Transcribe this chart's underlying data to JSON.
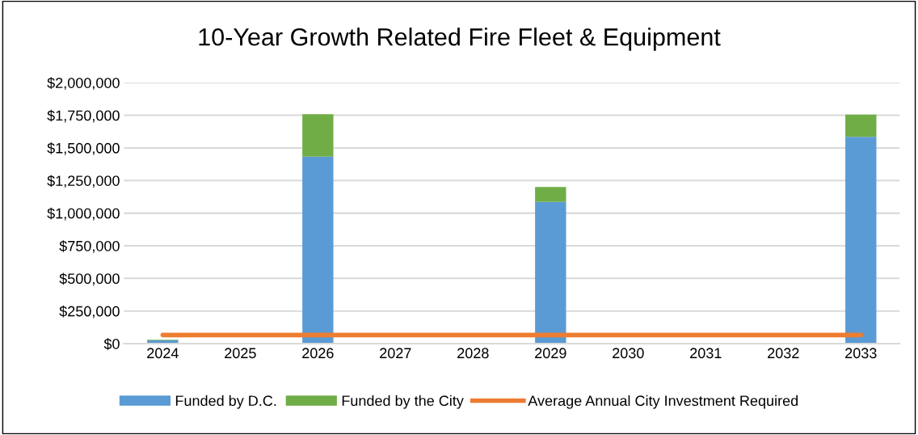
{
  "chart_data": {
    "type": "bar",
    "stacked": true,
    "title": "10-Year Growth Related Fire Fleet & Equipment",
    "categories": [
      "2024",
      "2025",
      "2026",
      "2027",
      "2028",
      "2029",
      "2030",
      "2031",
      "2032",
      "2033"
    ],
    "series": [
      {
        "name": "Funded by D.C.",
        "color": "#5b9bd5",
        "values": [
          25000,
          0,
          1433000,
          0,
          0,
          1086000,
          0,
          0,
          0,
          1584000
        ]
      },
      {
        "name": "Funded by the City",
        "color": "#70ad47",
        "values": [
          5000,
          0,
          325000,
          0,
          0,
          114000,
          0,
          0,
          0,
          171000
        ]
      },
      {
        "name": "Average Annual City Investment Required",
        "type": "line",
        "color": "#ed7d31",
        "values": [
          66000,
          66000,
          66000,
          66000,
          66000,
          66000,
          66000,
          66000,
          66000,
          66000
        ]
      }
    ],
    "ylim": [
      0,
      2000000
    ],
    "yticks": [
      {
        "value": 0,
        "label": "$0"
      },
      {
        "value": 250000,
        "label": "$250,000"
      },
      {
        "value": 500000,
        "label": "$500,000"
      },
      {
        "value": 750000,
        "label": "$750,000"
      },
      {
        "value": 1000000,
        "label": "$1,000,000"
      },
      {
        "value": 1250000,
        "label": "$1,250,000"
      },
      {
        "value": 1500000,
        "label": "$1,500,000"
      },
      {
        "value": 1750000,
        "label": "$1,750,000"
      },
      {
        "value": 2000000,
        "label": "$2,000,000"
      }
    ],
    "grid": "y",
    "legend": "bottom"
  }
}
